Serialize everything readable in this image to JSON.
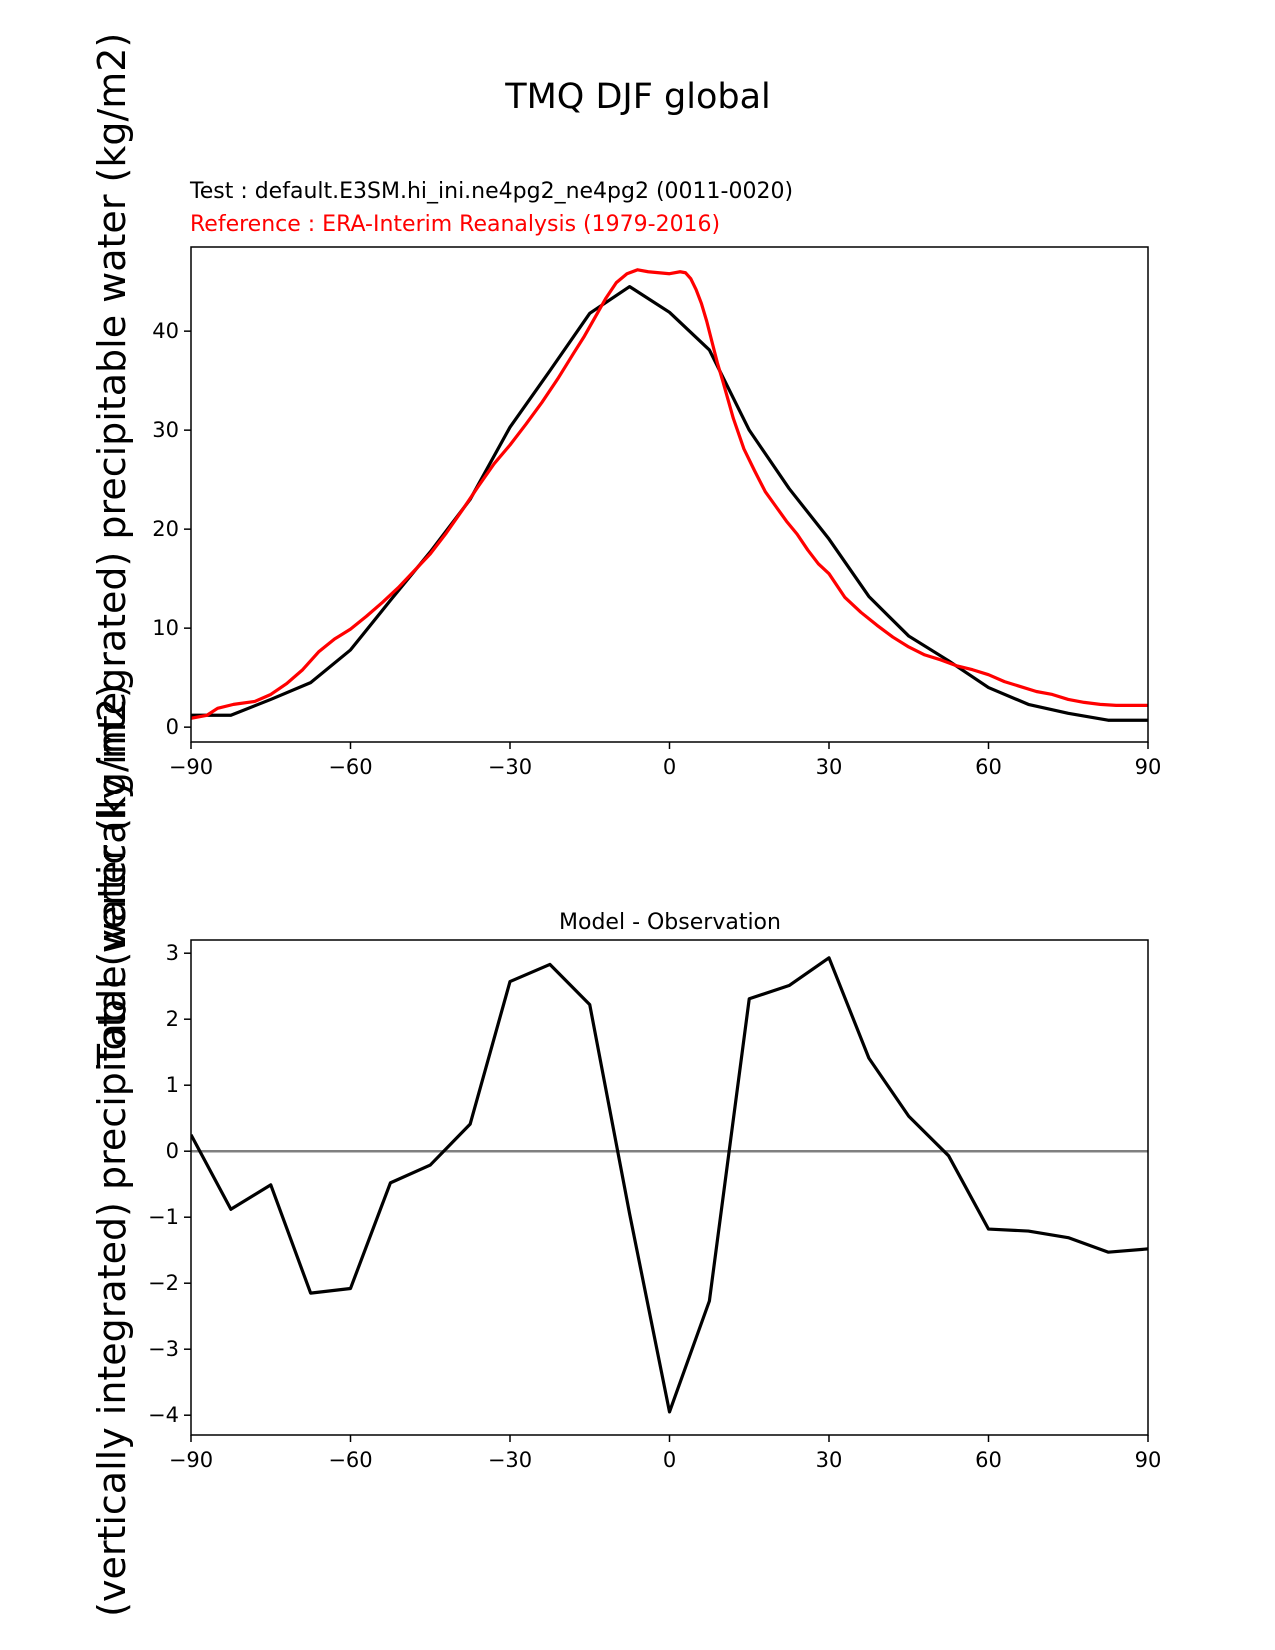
{
  "figure": {
    "title": "TMQ DJF global",
    "ylabel_overlay_1": "(vertically integrated) precipitable water (kg/m2)",
    "ylabel_overlay_2": "Total (vertically integrated) precipitable water (kg/m2)"
  },
  "colors": {
    "test": "#000000",
    "reference": "#ff0000",
    "zero_line": "#808080"
  },
  "chart_data": [
    {
      "type": "line",
      "test_label": "Test : default.E3SM.hi_ini.ne4pg2_ne4pg2 (0011-0020)",
      "reference_label": "Reference : ERA-Interim Reanalysis (1979-2016)",
      "xlim": [
        -90,
        90
      ],
      "ylim": [
        -1.5,
        48.5
      ],
      "xticks": [
        -90,
        -60,
        -30,
        0,
        30,
        60,
        90
      ],
      "xtick_labels": [
        "−90",
        "−60",
        "−30",
        "0",
        "30",
        "60",
        "90"
      ],
      "yticks": [
        0,
        10,
        20,
        30,
        40
      ],
      "ytick_labels": [
        "0",
        "10",
        "20",
        "30",
        "40"
      ],
      "series": [
        {
          "role": "test",
          "x": [
            -90,
            -82.5,
            -75,
            -67.5,
            -60,
            -52.5,
            -45,
            -37.5,
            -30,
            -22.5,
            -15,
            -7.5,
            0,
            7.5,
            15,
            22.5,
            30,
            37.5,
            45,
            52.5,
            60,
            67.5,
            75,
            82.5,
            90
          ],
          "y": [
            1.2,
            1.2,
            2.8,
            4.5,
            7.8,
            12.8,
            17.7,
            23.0,
            30.3,
            36.0,
            41.8,
            44.5,
            41.9,
            38.1,
            30.0,
            24.1,
            19.0,
            13.2,
            9.2,
            6.7,
            4.0,
            2.3,
            1.4,
            0.7,
            0.7
          ]
        },
        {
          "role": "reference",
          "x": [
            -90,
            -87,
            -85,
            -82,
            -78,
            -75,
            -72,
            -69,
            -66,
            -63,
            -60,
            -57,
            -54,
            -51,
            -48,
            -45,
            -42,
            -39,
            -36,
            -33,
            -30,
            -27,
            -24,
            -21,
            -18,
            -16,
            -14,
            -12,
            -10,
            -8,
            -6,
            -4,
            -2,
            0,
            2,
            3,
            4,
            5,
            6,
            7,
            8,
            9,
            10,
            12,
            14,
            16,
            18,
            20,
            22,
            24,
            26,
            28,
            30,
            33,
            36,
            39,
            42,
            45,
            48,
            51,
            54,
            57,
            60,
            63,
            66,
            69,
            72,
            75,
            78,
            81,
            84,
            87,
            90
          ],
          "y": [
            0.9,
            1.2,
            1.9,
            2.3,
            2.6,
            3.3,
            4.4,
            5.8,
            7.6,
            8.9,
            9.9,
            11.2,
            12.6,
            14.1,
            15.8,
            17.5,
            19.6,
            21.9,
            24.3,
            26.6,
            28.5,
            30.6,
            32.8,
            35.2,
            37.8,
            39.5,
            41.4,
            43.3,
            44.9,
            45.8,
            46.2,
            46.0,
            45.9,
            45.8,
            46.0,
            45.9,
            45.3,
            44.2,
            42.8,
            41.0,
            38.9,
            36.8,
            35.0,
            31.2,
            28.1,
            25.9,
            23.8,
            22.3,
            20.8,
            19.5,
            17.9,
            16.5,
            15.5,
            13.1,
            11.6,
            10.3,
            9.1,
            8.1,
            7.3,
            6.8,
            6.2,
            5.8,
            5.3,
            4.6,
            4.1,
            3.6,
            3.3,
            2.8,
            2.5,
            2.3,
            2.2,
            2.2,
            2.2
          ]
        }
      ]
    },
    {
      "type": "line",
      "title": "Model - Observation",
      "xlim": [
        -90,
        90
      ],
      "ylim": [
        -4.3,
        3.2
      ],
      "xticks": [
        -90,
        -60,
        -30,
        0,
        30,
        60,
        90
      ],
      "xtick_labels": [
        "−90",
        "−60",
        "−30",
        "0",
        "30",
        "60",
        "90"
      ],
      "yticks": [
        -4,
        -3,
        -2,
        -1,
        0,
        1,
        2,
        3
      ],
      "ytick_labels": [
        "−4",
        "−3",
        "−2",
        "−1",
        "0",
        "1",
        "2",
        "3"
      ],
      "zero_line": 0,
      "series": [
        {
          "role": "difference",
          "x": [
            -90,
            -82.5,
            -75,
            -67.5,
            -60,
            -52.5,
            -45,
            -37.5,
            -30,
            -22.5,
            -15,
            -7.5,
            0,
            7.5,
            15,
            22.5,
            30,
            37.5,
            45,
            52.5,
            60,
            67.5,
            75,
            82.5,
            90
          ],
          "y": [
            0.25,
            -0.88,
            -0.51,
            -2.15,
            -2.08,
            -0.48,
            -0.21,
            0.41,
            2.57,
            2.83,
            2.22,
            -0.95,
            -3.95,
            -2.27,
            2.31,
            2.51,
            2.93,
            1.41,
            0.53,
            -0.07,
            -1.18,
            -1.21,
            -1.31,
            -1.53,
            -1.48
          ]
        }
      ]
    }
  ]
}
